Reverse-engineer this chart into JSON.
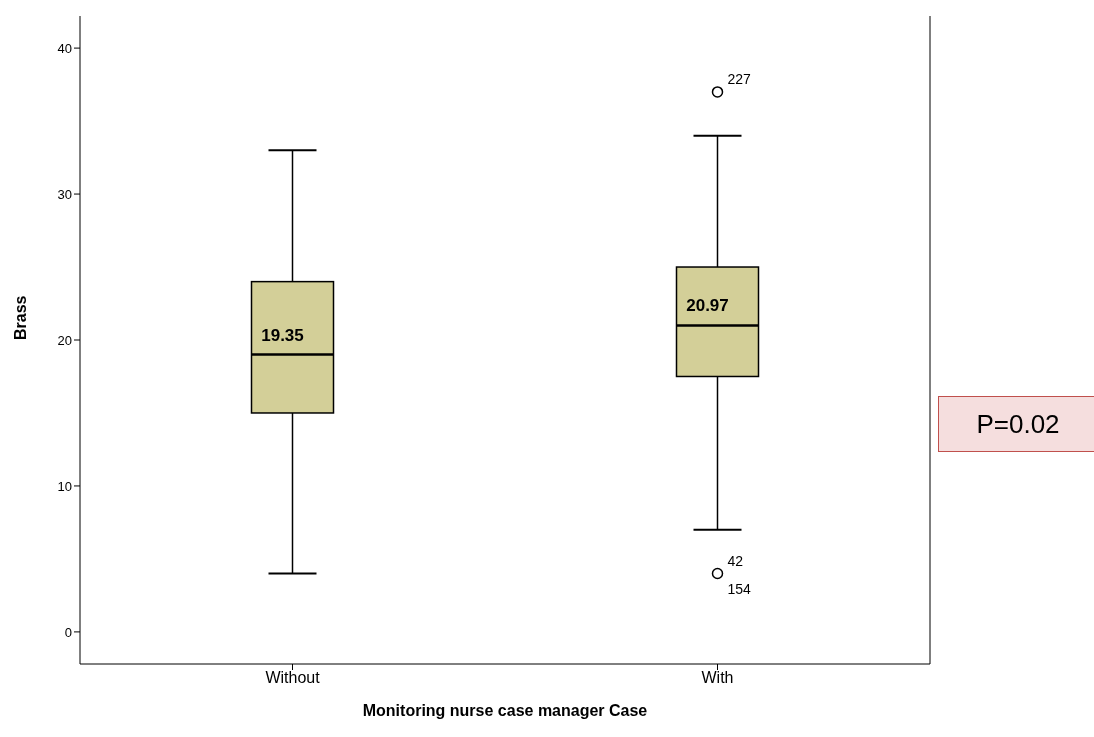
{
  "chart_data": {
    "type": "box",
    "xlabel": "Monitoring nurse case manager Case",
    "ylabel": "Brass",
    "categories": [
      "Without",
      "With"
    ],
    "boxes": [
      {
        "low": 4,
        "q1": 15,
        "median": 19,
        "q3": 24,
        "high": 33
      },
      {
        "low": 7,
        "q1": 17.5,
        "median": 21,
        "q3": 25,
        "high": 34,
        "outliers": [
          37,
          4
        ]
      }
    ],
    "color": "#d3cf98",
    "ylim": [
      -2.2,
      42.2
    ],
    "yticks": [
      0,
      10,
      20,
      30,
      40
    ],
    "annotations": [
      "19.35",
      "20.97",
      "227",
      "42",
      "154",
      "P=0.02"
    ]
  }
}
